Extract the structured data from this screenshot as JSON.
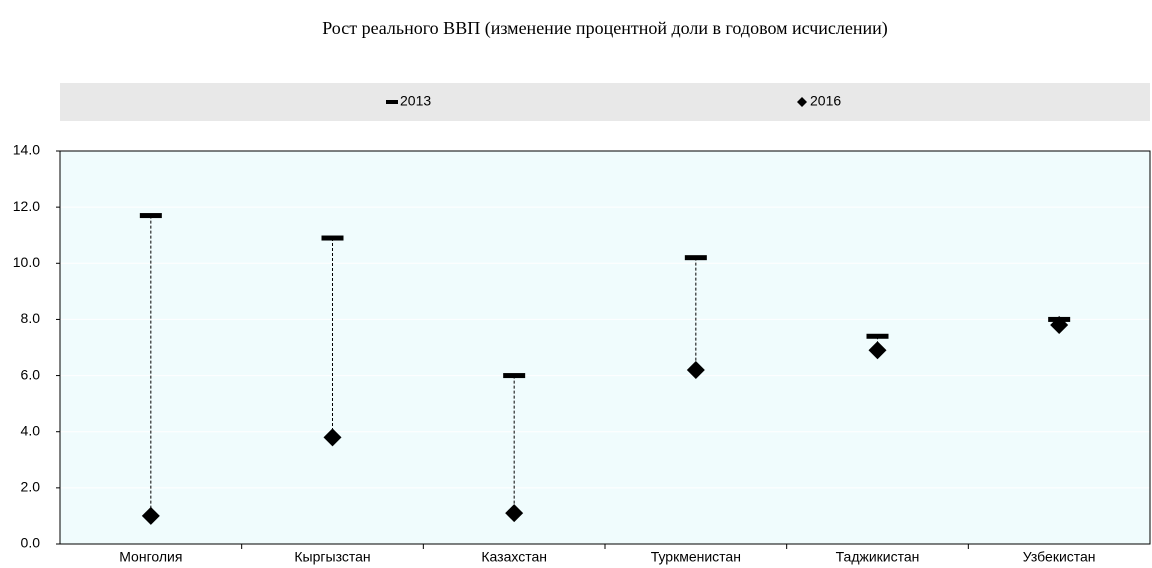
{
  "chart_data": {
    "type": "range-dot",
    "title": "Рост реального ВВП (изменение процентной доли в годовом исчислении)",
    "categories": [
      "Монголия",
      "Кыргызстан",
      "Казахстан",
      "Туркменистан",
      "Таджикистан",
      "Узбекистан"
    ],
    "series": [
      {
        "name": "2013",
        "color": "#000000",
        "marker": "dash",
        "values": [
          11.7,
          10.9,
          6.0,
          10.2,
          7.4,
          8.0
        ]
      },
      {
        "name": "2016",
        "color": "#000000",
        "marker": "diamond",
        "values": [
          1.0,
          3.8,
          1.1,
          6.2,
          6.9,
          7.8
        ]
      }
    ],
    "ylim": [
      0,
      14
    ],
    "yticks": [
      {
        "value": 0,
        "label": "0.0"
      },
      {
        "value": 2,
        "label": "2.0"
      },
      {
        "value": 4,
        "label": "4.0"
      },
      {
        "value": 6,
        "label": "6.0"
      },
      {
        "value": 8,
        "label": "8.0"
      },
      {
        "value": 10,
        "label": "10.0"
      },
      {
        "value": 12,
        "label": "12.0"
      },
      {
        "value": 14,
        "label": "14.0"
      }
    ],
    "grid": true,
    "legend": "top"
  }
}
